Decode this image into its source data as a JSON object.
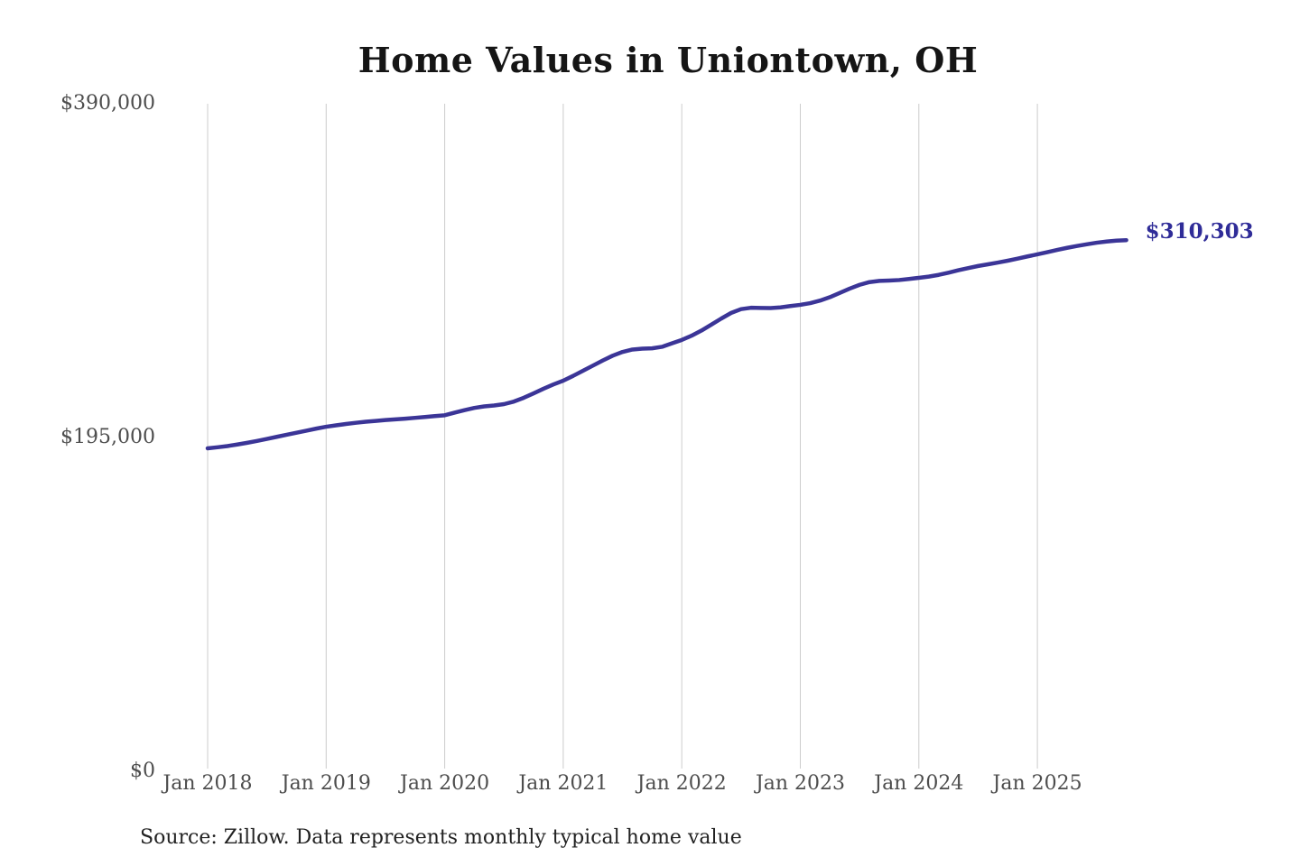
{
  "page": {
    "background_color": "#ffffff"
  },
  "header": {
    "title": "Home Values in Uniontown, OH"
  },
  "footer": {
    "source_note": "Source: Zillow. Data represents monthly typical home value"
  },
  "chart_data": {
    "type": "line",
    "title": "Home Values in Uniontown, OH",
    "xlabel": "",
    "ylabel": "",
    "ylim": [
      0,
      390000
    ],
    "grid": "vertical-only",
    "legend": false,
    "frequency": "monthly",
    "x_start": "2018-01",
    "x_end": "2025-10",
    "x_tick_labels": [
      "Jan 2018",
      "Jan 2019",
      "Jan 2020",
      "Jan 2021",
      "Jan 2022",
      "Jan 2023",
      "Jan 2024",
      "Jan 2025"
    ],
    "y_ticks": [
      {
        "label": "$0",
        "value": 0
      },
      {
        "label": "$195,000",
        "value": 195000
      },
      {
        "label": "$390,000",
        "value": 390000
      }
    ],
    "series": [
      {
        "name": "Typical home value",
        "values": [
          188700,
          189300,
          190000,
          190900,
          191900,
          193000,
          194200,
          195400,
          196600,
          197800,
          199000,
          200200,
          201300,
          202100,
          202900,
          203600,
          204200,
          204700,
          205200,
          205600,
          206000,
          206500,
          207000,
          207500,
          208000,
          209500,
          211000,
          212300,
          213200,
          213700,
          214500,
          216000,
          218200,
          220800,
          223500,
          226000,
          228200,
          231000,
          234000,
          237000,
          240000,
          242800,
          245000,
          246400,
          246900,
          247100,
          248000,
          250000,
          252000,
          254500,
          257500,
          261000,
          264500,
          267800,
          270000,
          270800,
          270700,
          270600,
          271000,
          271800,
          272500,
          273500,
          275000,
          277000,
          279500,
          282000,
          284200,
          285800,
          286500,
          286700,
          287000,
          287600,
          288300,
          289000,
          290000,
          291300,
          292700,
          294000,
          295200,
          296200,
          297200,
          298300,
          299500,
          300800,
          302000,
          303300,
          304600,
          305800,
          306900,
          307900,
          308800,
          309500,
          310000,
          310303
        ]
      }
    ],
    "annotations": [
      {
        "text": "$310,303",
        "position": "line-end"
      }
    ],
    "colors": {
      "line": "#3b3597",
      "end_label": "#2f2c98",
      "gridline": "#cccccc",
      "tick_label": "#4d4d4d",
      "title": "#151515",
      "source": "#222222"
    }
  }
}
